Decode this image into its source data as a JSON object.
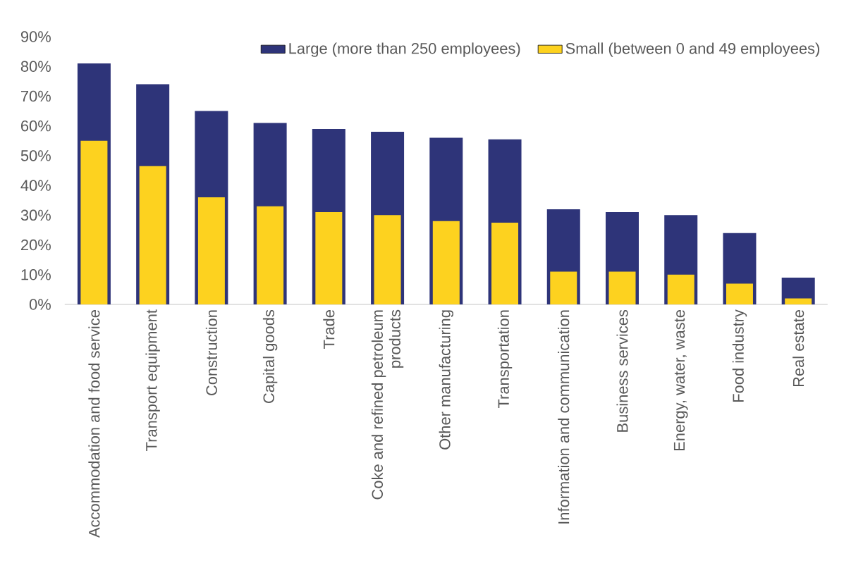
{
  "chart_data": {
    "type": "bar",
    "categories": [
      "Accommodation and food service",
      "Transport equipment",
      "Construction",
      "Capital goods",
      "Trade",
      "Coke and refined petroleum products",
      "Other manufacturing",
      "Transportation",
      "Information and communication",
      "Business services",
      "Energy, water, waste",
      "Food industry",
      "Real estate"
    ],
    "series": [
      {
        "name": "Large (more than 250 employees)",
        "color": "#2e3479",
        "values": [
          81,
          74,
          65,
          61,
          59,
          58,
          56,
          55.5,
          32,
          31,
          30,
          24,
          9
        ]
      },
      {
        "name": "Small (between 0 and 49 employees)",
        "color": "#fdd21f",
        "values": [
          55,
          46.5,
          36,
          33,
          31,
          30,
          28,
          27.5,
          11,
          11,
          10,
          7,
          2
        ]
      }
    ],
    "ylim": [
      0,
      90
    ],
    "yticks": [
      {
        "value": 0,
        "label": "0%"
      },
      {
        "value": 10,
        "label": "10%"
      },
      {
        "value": 20,
        "label": "20%"
      },
      {
        "value": 30,
        "label": "30%"
      },
      {
        "value": 40,
        "label": "40%"
      },
      {
        "value": 50,
        "label": "50%"
      },
      {
        "value": 60,
        "label": "60%"
      },
      {
        "value": 70,
        "label": "70%"
      },
      {
        "value": 80,
        "label": "80%"
      },
      {
        "value": 90,
        "label": "90%"
      }
    ],
    "legend": "top right"
  }
}
